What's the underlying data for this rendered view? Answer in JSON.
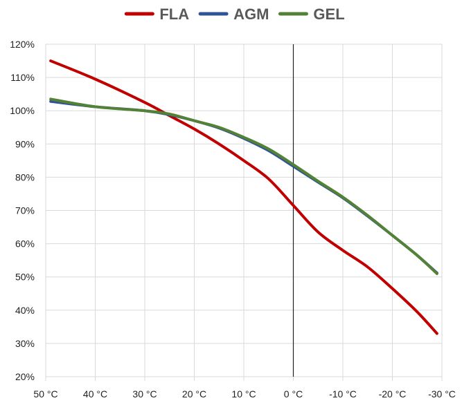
{
  "chart_data": {
    "type": "line",
    "x": [
      50,
      40,
      30,
      20,
      10,
      0,
      -10,
      -20,
      -30
    ],
    "x_tick_labels": [
      "50 °C",
      "40 °C",
      "30 °C",
      "20 °C",
      "10 °C",
      "0 °C",
      "-10 °C",
      "-20 °C",
      "-30 °C"
    ],
    "xlim": [
      50,
      -30
    ],
    "y_tick_labels": [
      "20%",
      "30%",
      "40%",
      "50%",
      "60%",
      "70%",
      "80%",
      "90%",
      "100%",
      "110%",
      "120%"
    ],
    "ylim": [
      20,
      120
    ],
    "ytick_step": 10,
    "grid": true,
    "vertical_line_at_x": 0,
    "legend_position": "top",
    "title": "",
    "xlabel": "",
    "ylabel": "",
    "series": [
      {
        "name": "FLA",
        "color": "#c00000",
        "points": [
          [
            49,
            115
          ],
          [
            40,
            109.5
          ],
          [
            30,
            102.5
          ],
          [
            25,
            98.5
          ],
          [
            20,
            94.5
          ],
          [
            15,
            90
          ],
          [
            10,
            85
          ],
          [
            5,
            79.5
          ],
          [
            0,
            71.5
          ],
          [
            -5,
            63.5
          ],
          [
            -10,
            58
          ],
          [
            -15,
            53
          ],
          [
            -20,
            46.5
          ],
          [
            -25,
            39.5
          ],
          [
            -29,
            33
          ]
        ]
      },
      {
        "name": "AGM",
        "color": "#2f5597",
        "points": [
          [
            49,
            102.8
          ],
          [
            40,
            101.2
          ],
          [
            30,
            100
          ],
          [
            25,
            98.8
          ],
          [
            20,
            97
          ],
          [
            15,
            94.8
          ],
          [
            10,
            91.7
          ],
          [
            5,
            88
          ],
          [
            0,
            83.3
          ],
          [
            -5,
            78.5
          ],
          [
            -10,
            73.8
          ],
          [
            -15,
            68.3
          ],
          [
            -20,
            62.5
          ],
          [
            -25,
            56.5
          ],
          [
            -29,
            51.2
          ]
        ]
      },
      {
        "name": "GEL",
        "color": "#538135",
        "points": [
          [
            49,
            103.5
          ],
          [
            40,
            101.2
          ],
          [
            30,
            100
          ],
          [
            25,
            99
          ],
          [
            20,
            97
          ],
          [
            15,
            95
          ],
          [
            10,
            92
          ],
          [
            5,
            88.5
          ],
          [
            0,
            83.8
          ],
          [
            -5,
            78.8
          ],
          [
            -10,
            74
          ],
          [
            -15,
            68.5
          ],
          [
            -20,
            62.5
          ],
          [
            -25,
            56.5
          ],
          [
            -29,
            51
          ]
        ]
      }
    ]
  }
}
